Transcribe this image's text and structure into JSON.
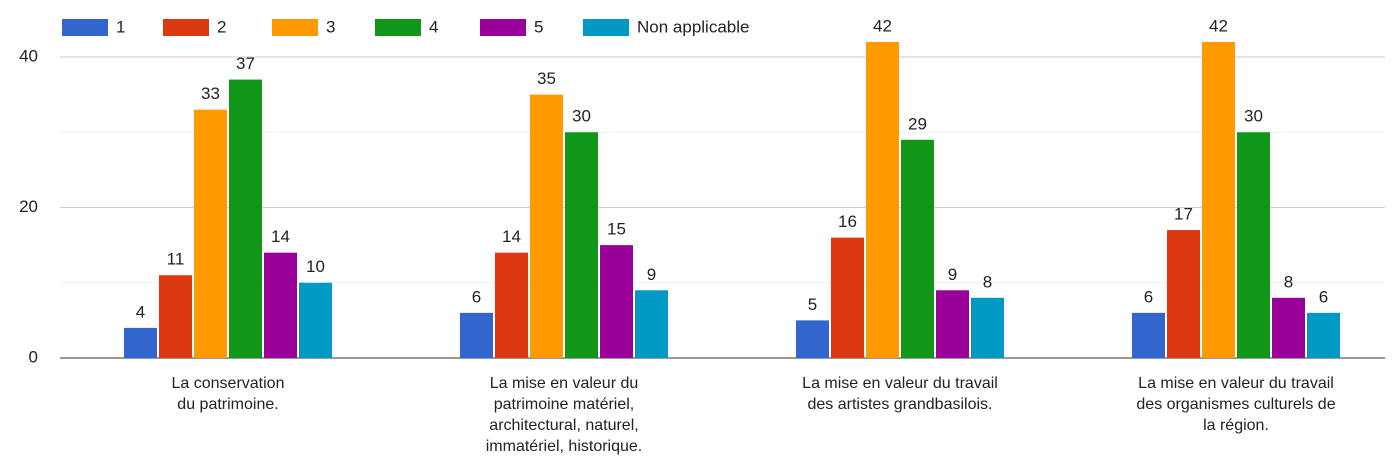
{
  "chart_data": {
    "type": "bar",
    "categories": [
      "La conservation\ndu patrimoine.",
      "La mise en valeur du\npatrimoine matériel,\narchitectural, naturel,\nimmatériel, historique.",
      "La mise en valeur du travail\ndes artistes grandbasilois.",
      "La mise en valeur du travail\ndes organismes culturels de\nla région."
    ],
    "series": [
      {
        "name": "1",
        "color": "#3366cc",
        "values": [
          4,
          6,
          5,
          6
        ]
      },
      {
        "name": "2",
        "color": "#dc3912",
        "values": [
          11,
          14,
          16,
          17
        ]
      },
      {
        "name": "3",
        "color": "#ff9900",
        "values": [
          33,
          35,
          42,
          42
        ]
      },
      {
        "name": "4",
        "color": "#109618",
        "values": [
          37,
          30,
          29,
          30
        ]
      },
      {
        "name": "5",
        "color": "#990099",
        "values": [
          14,
          15,
          9,
          8
        ]
      },
      {
        "name": "Non applicable",
        "color": "#0099c6",
        "values": [
          10,
          9,
          8,
          6
        ]
      }
    ],
    "ylim": [
      0,
      40
    ],
    "yticks": [
      0,
      20,
      40
    ],
    "minor_yticks": [
      10,
      30
    ],
    "grid": true,
    "legend": "top"
  }
}
